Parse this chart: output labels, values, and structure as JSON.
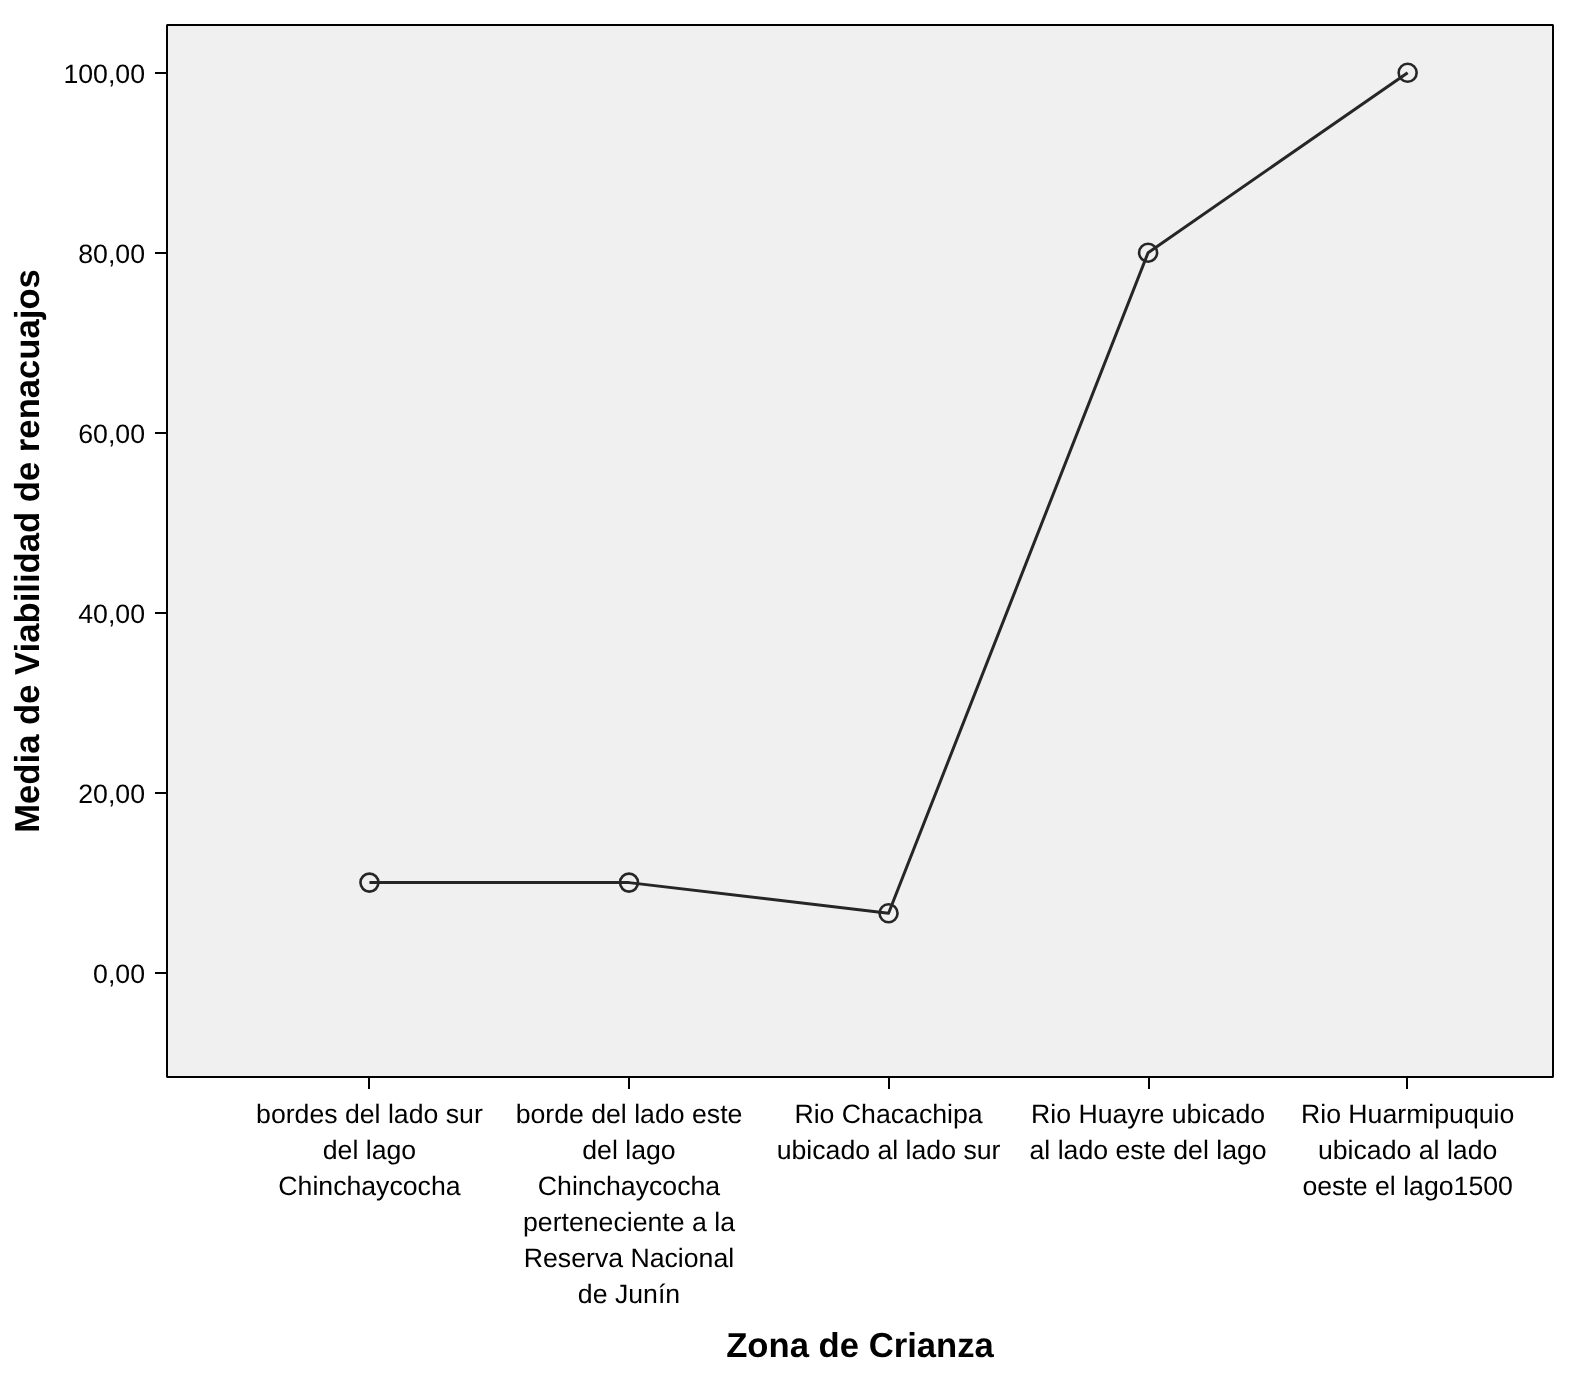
{
  "chart_data": {
    "type": "line",
    "xlabel": "Zona de Crianza",
    "ylabel": "Media de Viabilidad de renacuajos",
    "categories": [
      "bordes del lado sur\ndel lago\nChinchaycocha",
      "borde del lado este\ndel lago\nChinchaycocha\nperteneciente a la\nReserva Nacional\nde Junín",
      "Rio Chacachipa\nubicado al lado sur",
      "Rio Huayre ubicado\nal lado este del lago",
      "Rio Huarmipuquio\nubicado al lado\noeste el lago1500"
    ],
    "series": [
      {
        "color": "#262626",
        "values": [
          10,
          10,
          6.6,
          80,
          100
        ]
      }
    ],
    "ylim": [
      -11.6,
      105.3
    ],
    "yticks": [
      {
        "value": 0,
        "label": "0,00"
      },
      {
        "value": 20,
        "label": "20,00"
      },
      {
        "value": 40,
        "label": "40,00"
      },
      {
        "value": 60,
        "label": "60,00"
      },
      {
        "value": 80,
        "label": "80,00"
      },
      {
        "value": 100,
        "label": "100,00"
      }
    ],
    "marker": "circle",
    "line_style": "solid",
    "grid": false
  }
}
